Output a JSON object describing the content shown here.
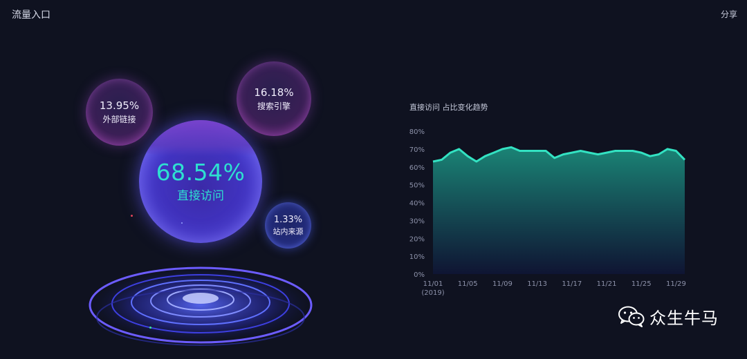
{
  "header": {
    "title": "流量入口",
    "share_label": "分享"
  },
  "bubbles": {
    "main": {
      "percent": "68.54%",
      "label": "直接访问"
    },
    "external": {
      "percent": "13.95%",
      "label": "外部链接"
    },
    "search": {
      "percent": "16.18%",
      "label": "搜索引擎"
    },
    "internal": {
      "percent": "1.33%",
      "label": "站内来源"
    }
  },
  "chart_data": {
    "type": "area",
    "title": "直接访问 占比变化趋势",
    "y_ticks": [
      "80%",
      "70%",
      "60%",
      "50%",
      "40%",
      "30%",
      "20%",
      "10%",
      "0%"
    ],
    "ylim": [
      0,
      80
    ],
    "x_tick_labels": [
      "11/01",
      "11/05",
      "11/09",
      "11/13",
      "11/17",
      "11/21",
      "11/25",
      "11/29"
    ],
    "x_tick_days": [
      1,
      5,
      9,
      13,
      17,
      21,
      25,
      29
    ],
    "x_first_sublabel": "2019",
    "x_days": [
      1,
      2,
      3,
      4,
      5,
      6,
      7,
      8,
      9,
      10,
      11,
      12,
      13,
      14,
      15,
      16,
      17,
      18,
      19,
      20,
      21,
      22,
      23,
      24,
      25,
      26,
      27,
      28,
      29,
      30
    ],
    "values": [
      63,
      64,
      68,
      70,
      66,
      63,
      66,
      68,
      70,
      71,
      69,
      69,
      69,
      69,
      65,
      67,
      68,
      69,
      68,
      67,
      68,
      69,
      69,
      69,
      68,
      66,
      67,
      70,
      69,
      64
    ],
    "grid": false,
    "line_color": "#33e2c2",
    "area_top_color": "#1b8a7a",
    "area_bottom_color": "#0f1535"
  },
  "watermark": {
    "text": "众生牛马",
    "icon": "wechat-icon"
  }
}
